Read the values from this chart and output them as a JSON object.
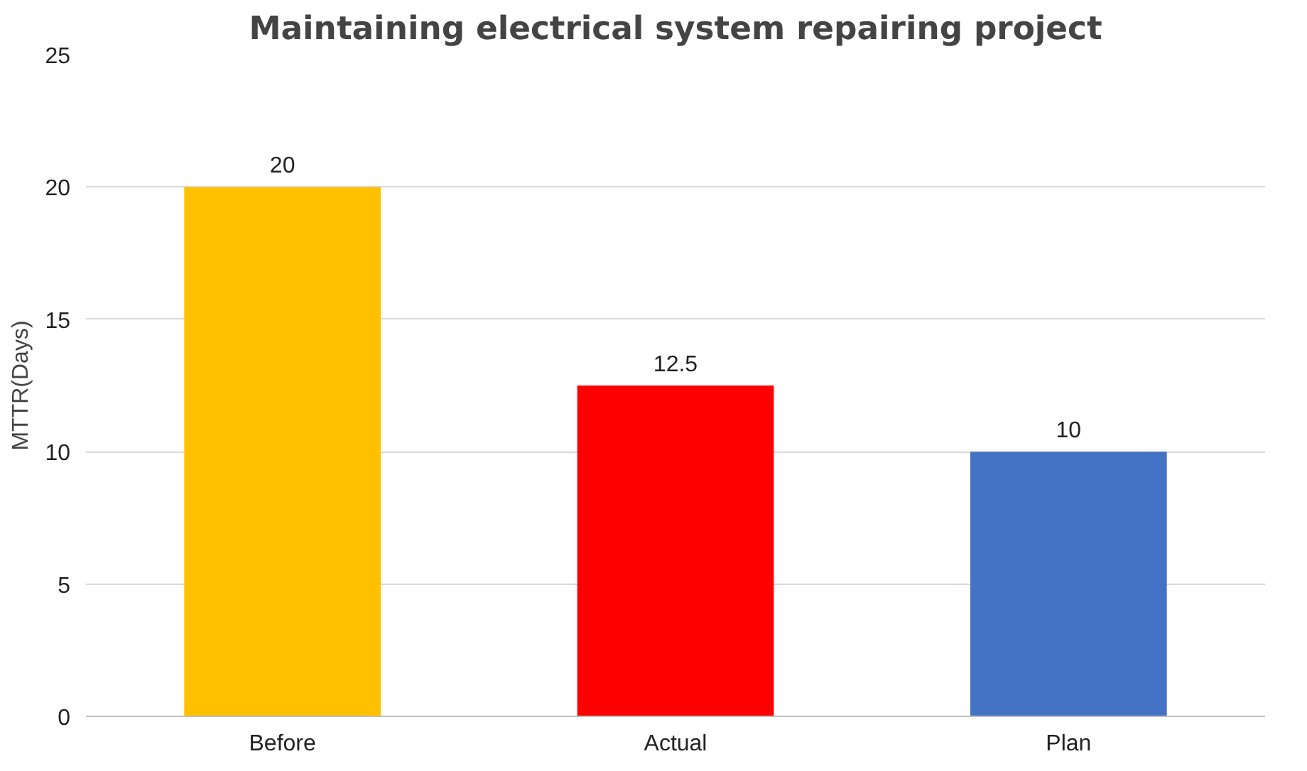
{
  "chart_data": {
    "type": "bar",
    "title": "Maintaining electrical system repairing project",
    "ylabel": "MTTR(Days)",
    "categories": [
      "Before",
      "Actual",
      "Plan"
    ],
    "values": [
      20,
      12.5,
      10
    ],
    "colors": [
      "#ffc000",
      "#ff0000",
      "#4472c4"
    ],
    "ylim": [
      0,
      25
    ],
    "yticks": [
      0,
      5,
      10,
      15,
      20,
      25
    ],
    "grid": "y",
    "data_labels": true
  }
}
